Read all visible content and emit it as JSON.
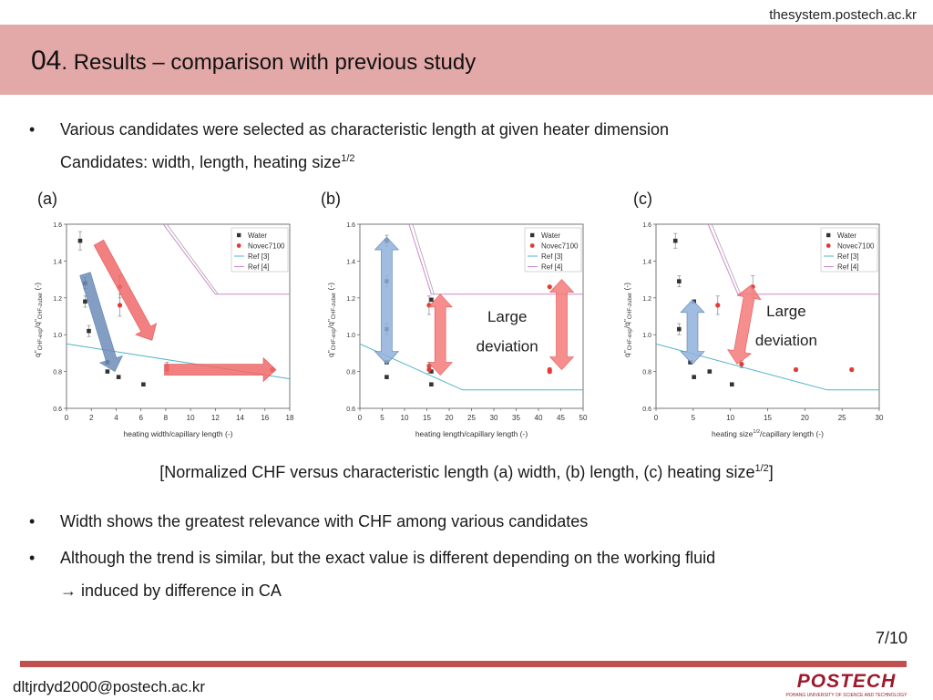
{
  "url": "thesystem.postech.ac.kr",
  "title": {
    "num": "04",
    "text": ". Results – comparison with previous study"
  },
  "bullets": {
    "b1": "Various candidates were selected as characteristic length at given heater dimension",
    "b1_sub_main": "Candidates: width, length, heating size",
    "b1_sub_sup": "1/2",
    "b2": "Width shows the greatest relevance with CHF among various candidates",
    "b3": "Although the trend is similar, but the exact value is different depending on the working fluid",
    "b3_sub": "induced by difference in CA",
    "bullet_char": "•",
    "arrow_char": "→"
  },
  "panel_labels": {
    "a": "(a)",
    "b": "(b)",
    "c": "(c)"
  },
  "caption": {
    "main": "[Normalized CHF versus characteristic length (a) width, (b) length, (c) heating size",
    "sup": "1/2",
    "end": "]"
  },
  "page_number": "7/10",
  "email": "dltjrdyd2000@postech.ac.kr",
  "logo": {
    "text": "POSTECH",
    "subtitle": "POHANG UNIVERSITY OF SCIENCE AND TECHNOLOGY"
  },
  "colors": {
    "title_bar": "#e3a8a8",
    "footer_line": "#c0514f",
    "water": "#333333",
    "novec": "#e53935",
    "ref3": "#4fb3c8",
    "ref4_line": "#cc88cc",
    "ref4_gray": "#b0a0a8",
    "red_arrow": "#f06a6a",
    "blue_arrow": "#7f9cc8",
    "logo": "#9c1a2c"
  },
  "chart_data": [
    {
      "type": "scatter",
      "panel": "(a)",
      "xlabel": "heating width/capillary length (-)",
      "ylabel_main": "q\"",
      "ylabel_sub1": "CHF-exp",
      "ylabel_slash": "/q\"",
      "ylabel_sub2": "CHF-zuber",
      "ylabel_unit": " (-)",
      "xlim": [
        0,
        18
      ],
      "ylim": [
        0.6,
        1.6
      ],
      "xticks": [
        0,
        2,
        4,
        6,
        8,
        10,
        12,
        14,
        16,
        18
      ],
      "yticks": [
        0.6,
        0.8,
        1.0,
        1.2,
        1.4,
        1.6
      ],
      "legend": [
        "Water",
        "Novec7100",
        "Ref [3]",
        "Ref [4]"
      ],
      "series": [
        {
          "name": "Water",
          "points": [
            [
              1.1,
              1.51,
              0.05
            ],
            [
              1.5,
              1.28,
              0.03
            ],
            [
              1.5,
              1.18,
              0.03
            ],
            [
              1.8,
              1.02,
              0.03
            ],
            [
              3.3,
              0.85,
              0
            ],
            [
              3.3,
              0.8,
              0
            ],
            [
              4.2,
              0.77,
              0
            ],
            [
              6.2,
              0.73,
              0
            ]
          ]
        },
        {
          "name": "Novec7100",
          "points": [
            [
              4.3,
              1.26,
              0.06
            ],
            [
              4.3,
              1.16,
              0.06
            ],
            [
              8.1,
              0.83,
              0.02
            ],
            [
              8.1,
              0.81,
              0.02
            ],
            [
              16.6,
              0.81,
              0.01
            ]
          ]
        },
        {
          "name": "Ref [3]",
          "line": [
            [
              0,
              0.95
            ],
            [
              18,
              0.76
            ]
          ]
        },
        {
          "name": "Ref [4]",
          "line": [
            [
              7.8,
              1.6
            ],
            [
              12,
              1.22
            ],
            [
              18,
              1.22
            ]
          ]
        }
      ],
      "annotations": []
    },
    {
      "type": "scatter",
      "panel": "(b)",
      "xlabel": "heating length/capillary length (-)",
      "ylabel_main": "q\"",
      "ylabel_sub1": "CHF-exp",
      "ylabel_slash": "/q\"",
      "ylabel_sub2": "CHF-zuber",
      "ylabel_unit": " (-)",
      "xlim": [
        0,
        50
      ],
      "ylim": [
        0.6,
        1.6
      ],
      "xticks": [
        0,
        5,
        10,
        15,
        20,
        25,
        30,
        35,
        40,
        45,
        50
      ],
      "yticks": [
        0.6,
        0.8,
        1.0,
        1.2,
        1.4,
        1.6
      ],
      "legend": [
        "Water",
        "Novec7100",
        "Ref [3]",
        "Ref [4]"
      ],
      "series": [
        {
          "name": "Water",
          "points": [
            [
              6,
              1.51,
              0.03
            ],
            [
              6,
              1.29,
              0.03
            ],
            [
              6,
              1.03,
              0.03
            ],
            [
              6,
              0.85,
              0
            ],
            [
              6,
              0.77,
              0
            ],
            [
              16,
              1.19,
              0
            ],
            [
              16,
              0.8,
              0
            ],
            [
              16,
              0.73,
              0
            ]
          ]
        },
        {
          "name": "Novec7100",
          "points": [
            [
              15.5,
              1.16,
              0.05
            ],
            [
              15.5,
              0.83,
              0.02
            ],
            [
              15.5,
              0.81,
              0.02
            ],
            [
              42.5,
              1.26,
              0
            ],
            [
              42.5,
              0.81,
              0.01
            ],
            [
              42.5,
              0.8,
              0.01
            ]
          ]
        },
        {
          "name": "Ref [3]",
          "line": [
            [
              0,
              0.95
            ],
            [
              23,
              0.7
            ],
            [
              50,
              0.7
            ]
          ]
        },
        {
          "name": "Ref [4]",
          "line": [
            [
              11,
              1.6
            ],
            [
              16,
              1.22
            ],
            [
              50,
              1.22
            ]
          ]
        }
      ],
      "annotations": [
        "Large",
        "deviation"
      ]
    },
    {
      "type": "scatter",
      "panel": "(c)",
      "xlabel": "heating size",
      "xlabel_sup": "1/2",
      "xlabel_end": "/capillary length (-)",
      "ylabel_main": "q\"",
      "ylabel_sub1": "CHF-exp",
      "ylabel_slash": "/q\"",
      "ylabel_sub2": "CHF-zuber",
      "ylabel_unit": " (-)",
      "xlim": [
        0,
        30
      ],
      "ylim": [
        0.6,
        1.6
      ],
      "xticks": [
        0,
        5,
        10,
        15,
        20,
        25,
        30
      ],
      "yticks": [
        0.6,
        0.8,
        1.0,
        1.2,
        1.4,
        1.6
      ],
      "legend": [
        "Water",
        "Novec7100",
        "Ref [3]",
        "Ref [4]"
      ],
      "series": [
        {
          "name": "Water",
          "points": [
            [
              2.6,
              1.51,
              0.04
            ],
            [
              3.1,
              1.29,
              0.03
            ],
            [
              3.1,
              1.03,
              0.03
            ],
            [
              4.6,
              0.85,
              0
            ],
            [
              5.1,
              1.18,
              0
            ],
            [
              5.1,
              0.77,
              0
            ],
            [
              7.2,
              0.8,
              0
            ],
            [
              10.2,
              0.73,
              0
            ]
          ]
        },
        {
          "name": "Novec7100",
          "points": [
            [
              8.3,
              1.16,
              0.05
            ],
            [
              11.5,
              0.84,
              0.02
            ],
            [
              13,
              1.26,
              0.06
            ],
            [
              18.8,
              0.81,
              0.01
            ],
            [
              26.3,
              0.81,
              0.01
            ]
          ]
        },
        {
          "name": "Ref [3]",
          "line": [
            [
              0,
              0.95
            ],
            [
              23,
              0.7
            ],
            [
              30,
              0.7
            ]
          ]
        },
        {
          "name": "Ref [4]",
          "line": [
            [
              7,
              1.6
            ],
            [
              11,
              1.22
            ],
            [
              30,
              1.22
            ]
          ]
        }
      ],
      "annotations": [
        "Large",
        "deviation"
      ]
    }
  ]
}
